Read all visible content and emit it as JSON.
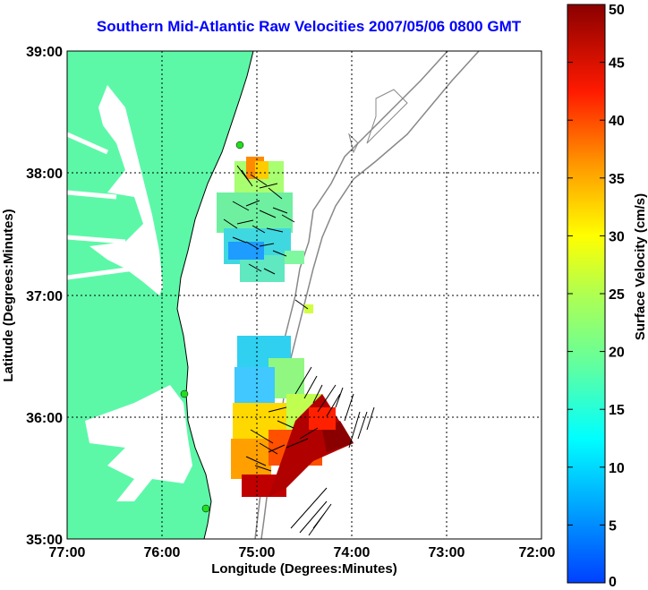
{
  "title": "Southern Mid-Atlantic Raw Velocities 2007/05/06 0800 GMT",
  "xlabel": "Longitude (Degrees:Minutes)",
  "ylabel": "Latitude (Degrees:Minutes)",
  "x_ticks": [
    "77:00",
    "76:00",
    "75:00",
    "74:00",
    "73:00",
    "72:00"
  ],
  "y_ticks": [
    "39:00",
    "38:00",
    "37:00",
    "36:00",
    "35:00"
  ],
  "colorbar": {
    "label": "Surface Velocity (cm/s)",
    "ticks": [
      "0",
      "5",
      "10",
      "15",
      "20",
      "25",
      "30",
      "35",
      "40",
      "45",
      "50"
    ],
    "range": [
      0,
      50
    ]
  },
  "colors": {
    "land": "#5cf8a8",
    "title": "#0000ff",
    "bathymetry": "#888888",
    "station": "#22dd22"
  }
}
